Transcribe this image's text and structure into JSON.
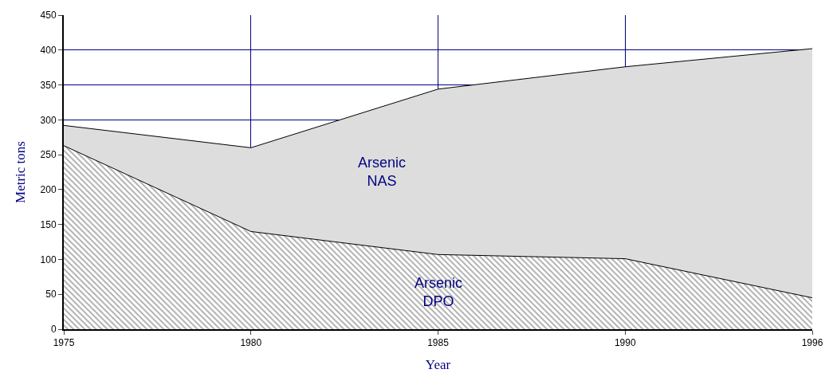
{
  "chart_data": {
    "type": "area",
    "stacked": true,
    "xlabel": "Year",
    "ylabel": "Metric tons",
    "categories": [
      "1975",
      "1980",
      "1985",
      "1990",
      "1996"
    ],
    "series": [
      {
        "name": "Arsenic DPO",
        "color": "#555555",
        "values": [
          263,
          140,
          107,
          101,
          45
        ]
      },
      {
        "name": "Arsenic NAS",
        "color": "#dddddd",
        "values": [
          29,
          120,
          237,
          275,
          357
        ]
      }
    ],
    "ylim": [
      0,
      450
    ],
    "yticks": [
      0,
      50,
      100,
      150,
      200,
      250,
      300,
      350,
      400,
      450
    ],
    "grid": true
  }
}
